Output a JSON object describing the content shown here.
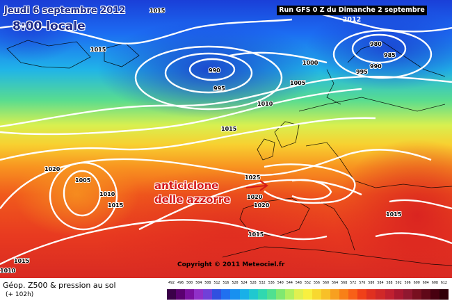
{
  "header": {
    "date": "Jeudi 6 septembre 2012",
    "time": "8:00 locale",
    "run": "Run GFS 0 Z du Dimanche 2 septembre 2012"
  },
  "annotation": {
    "line1": "anticiclone",
    "line2": "delle azzorre",
    "color": "#d41818"
  },
  "isobars": [
    "1015",
    "1015",
    "1015",
    "990",
    "995",
    "1000",
    "1005",
    "980",
    "985",
    "990",
    "995",
    "1010",
    "1015",
    "1020",
    "1005",
    "1010",
    "1015",
    "1025",
    "1020",
    "1020",
    "1015",
    "1015",
    "1015",
    "1010"
  ],
  "copyright": "Copyright © 2011 Meteociel.fr",
  "legend": {
    "title": "Géop. Z500 & pression au sol",
    "subtitle": "(+ 102h)",
    "scale_values": [
      "492",
      "496",
      "500",
      "504",
      "508",
      "512",
      "516",
      "520",
      "524",
      "528",
      "532",
      "536",
      "540",
      "544",
      "548",
      "552",
      "556",
      "560",
      "564",
      "568",
      "572",
      "576",
      "580",
      "584",
      "588",
      "592",
      "596",
      "600",
      "604",
      "608",
      "612"
    ],
    "scale_colors": [
      "#3a0048",
      "#5a0070",
      "#7a10a0",
      "#9030c8",
      "#7040d8",
      "#3050e0",
      "#2070f0",
      "#1890f0",
      "#18b0e8",
      "#20c8d0",
      "#30d8b0",
      "#50e090",
      "#80e870",
      "#b0f060",
      "#e0f050",
      "#f8f040",
      "#f8d830",
      "#f8c028",
      "#f8a020",
      "#f88018",
      "#f86018",
      "#f04018",
      "#e03020",
      "#d02828",
      "#c02030",
      "#a81830",
      "#901830",
      "#781020",
      "#600818",
      "#480010",
      "#300008"
    ]
  }
}
